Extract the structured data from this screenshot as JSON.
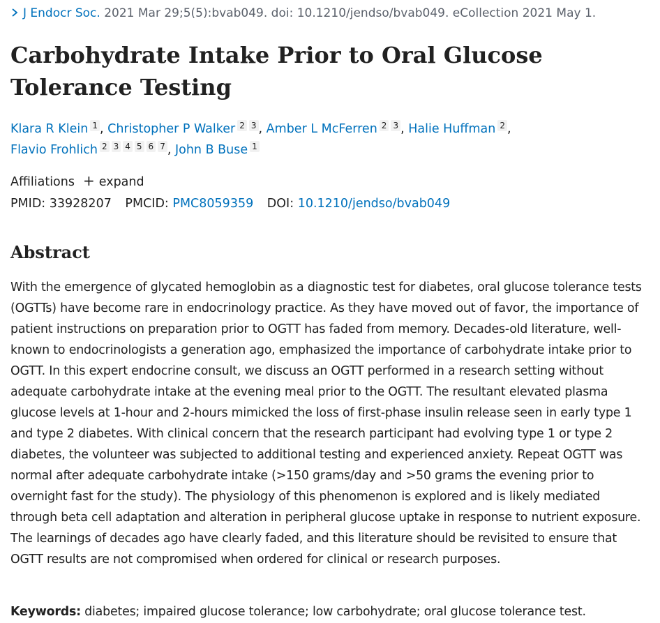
{
  "citation": {
    "journal": "J Endocr Soc.",
    "details": " 2021 Mar 29;5(5):bvab049. doi: 10.1210/jendso/bvab049. eCollection 2021 May 1."
  },
  "title": "Carbohydrate Intake Prior to Oral Glucose Tolerance Testing",
  "authors": [
    {
      "name": "Klara R Klein",
      "affs": [
        "1"
      ]
    },
    {
      "name": "Christopher P Walker",
      "affs": [
        "2",
        "3"
      ]
    },
    {
      "name": "Amber L McFerren",
      "affs": [
        "2",
        "3"
      ]
    },
    {
      "name": "Halie Huffman",
      "affs": [
        "2"
      ]
    },
    {
      "name": "Flavio Frohlich",
      "affs": [
        "2",
        "3",
        "4",
        "5",
        "6",
        "7"
      ]
    },
    {
      "name": "John B Buse",
      "affs": [
        "1"
      ]
    }
  ],
  "affiliations": {
    "label": "Affiliations",
    "expand_icon": "plus-icon",
    "expand_label": "expand"
  },
  "ids": {
    "pmid_label": "PMID:",
    "pmid": "33928207",
    "pmcid_label": "PMCID:",
    "pmcid": "PMC8059359",
    "doi_label": "DOI:",
    "doi": "10.1210/jendso/bvab049"
  },
  "abstract": {
    "heading": "Abstract",
    "text": "With the emergence of glycated hemoglobin as a diagnostic test for diabetes, oral glucose tolerance tests (OGTTs) have become rare in endocrinology practice. As they have moved out of favor, the importance of patient instructions on preparation prior to OGTT has faded from memory. Decades-old literature, well-known to endocrinologists a generation ago, emphasized the importance of carbohydrate intake prior to OGTT. In this expert endocrine consult, we discuss an OGTT performed in a research setting without adequate carbohydrate intake at the evening meal prior to the OGTT. The resultant elevated plasma glucose levels at 1-hour and 2-hours mimicked the loss of first-phase insulin release seen in early type 1 and type 2 diabetes. With clinical concern that the research participant had evolving type 1 or type 2 diabetes, the volunteer was subjected to additional testing and experienced anxiety. Repeat OGTT was normal after adequate carbohydrate intake (>150 grams/day and >50 grams the evening prior to overnight fast for the study). The physiology of this phenomenon is explored and is likely mediated through beta cell adaptation and alteration in peripheral glucose uptake in response to nutrient exposure. The learnings of decades ago have clearly faded, and this literature should be revisited to ensure that OGTT results are not compromised when ordered for clinical or research purposes."
  },
  "keywords": {
    "label": "Keywords:",
    "text": " diabetes; impaired glucose tolerance; low carbohydrate; oral glucose tolerance test."
  },
  "colors": {
    "link": "#0071bc",
    "text": "#212121",
    "muted": "#5b616b"
  }
}
